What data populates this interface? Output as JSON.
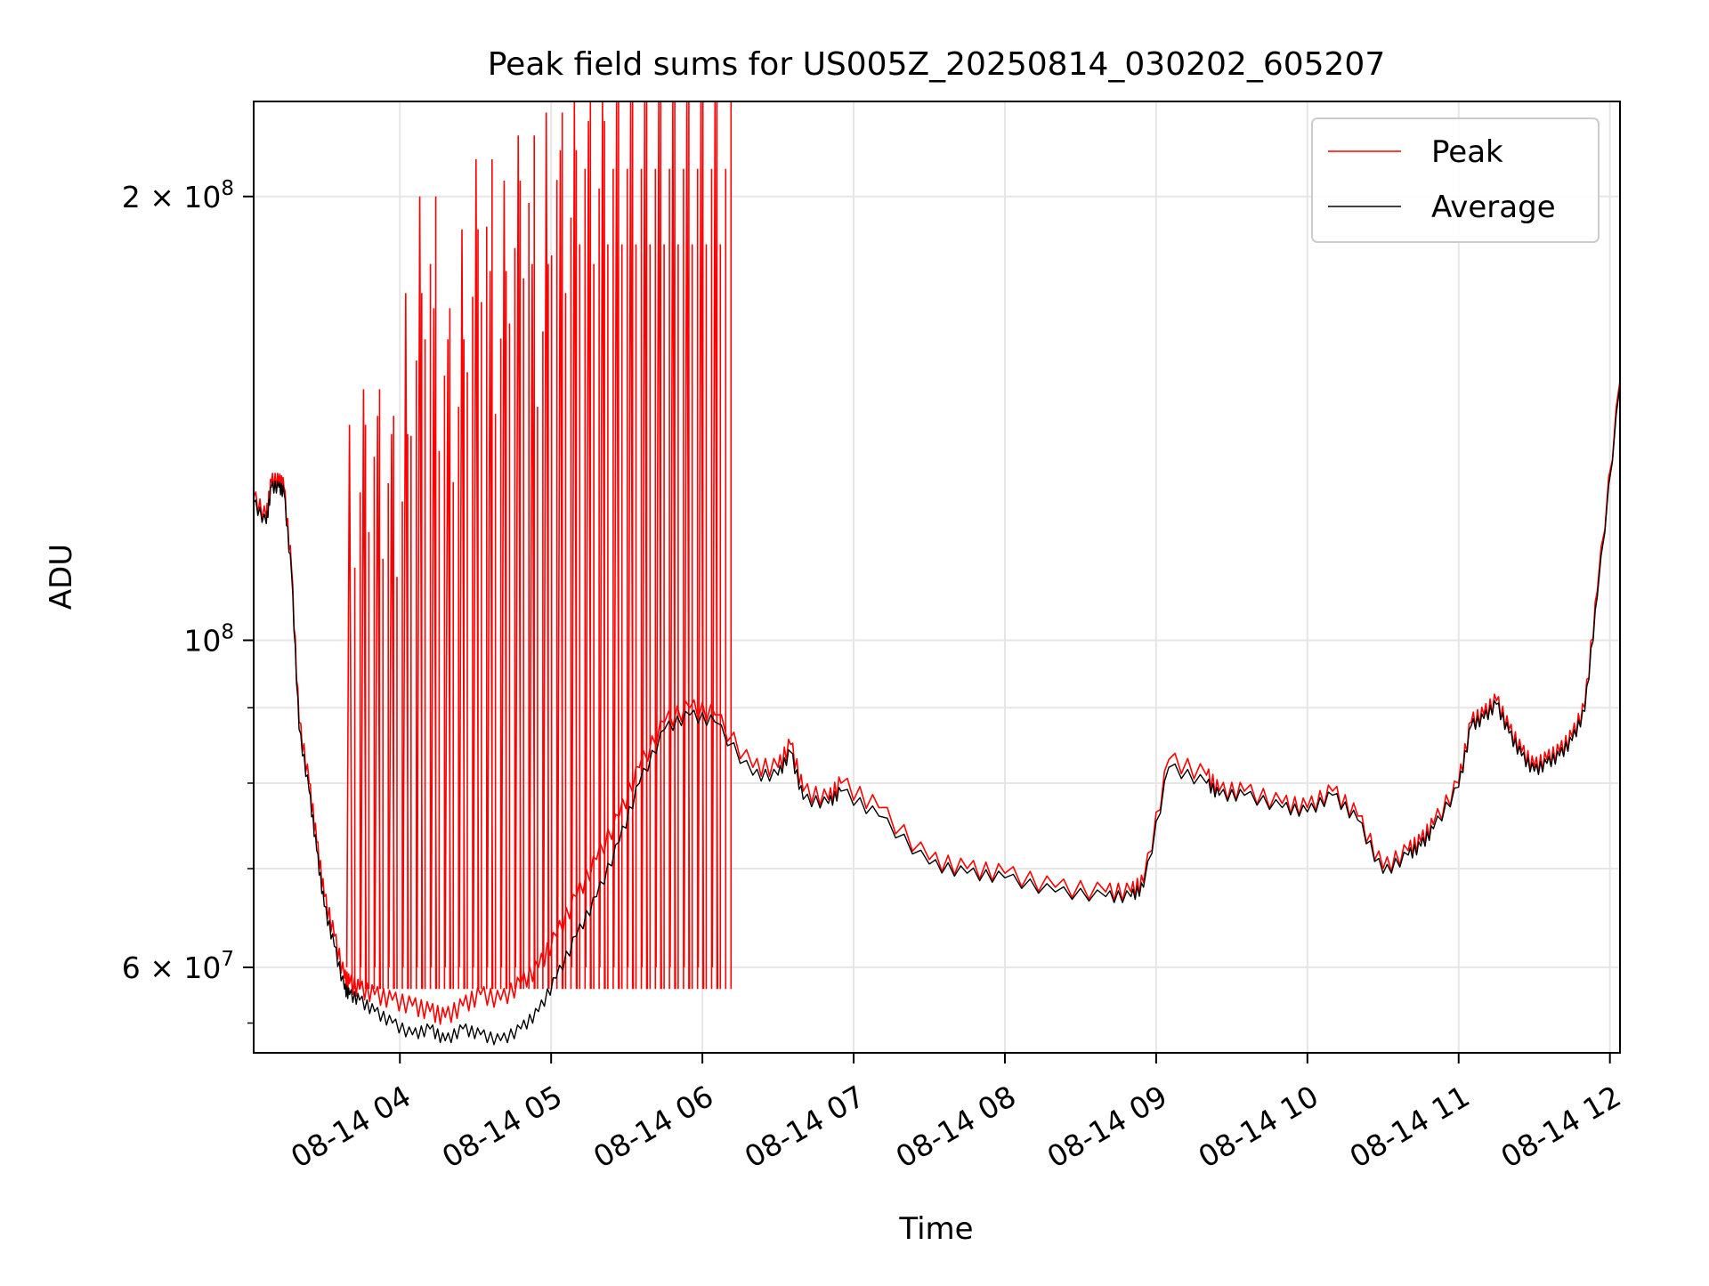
{
  "chart_data": {
    "type": "line",
    "title": "Peak field sums for US005Z_20250814_030202_605207",
    "xlabel": "Time",
    "ylabel": "ADU",
    "y_scale": "log",
    "ylim": [
      52500000,
      232000000
    ],
    "xlim": [
      "2025-08-14 03:02",
      "2025-08-14 12:04"
    ],
    "grid": true,
    "legend_position": "top-right",
    "colors": {
      "peak": "#ff0000",
      "average": "#000000",
      "grid": "#e6e6e6"
    },
    "x_ticks": [
      {
        "value": "2025-08-14 04:00",
        "label": "08-14 04"
      },
      {
        "value": "2025-08-14 05:00",
        "label": "08-14 05"
      },
      {
        "value": "2025-08-14 06:00",
        "label": "08-14 06"
      },
      {
        "value": "2025-08-14 07:00",
        "label": "08-14 07"
      },
      {
        "value": "2025-08-14 08:00",
        "label": "08-14 08"
      },
      {
        "value": "2025-08-14 09:00",
        "label": "08-14 09"
      },
      {
        "value": "2025-08-14 10:00",
        "label": "08-14 10"
      },
      {
        "value": "2025-08-14 11:00",
        "label": "08-14 11"
      },
      {
        "value": "2025-08-14 12:00",
        "label": "08-14 12"
      }
    ],
    "y_ticks_major": [
      {
        "value": 60000000,
        "base": "6 × 10",
        "exp": "7"
      },
      {
        "value": 100000000,
        "base": "10",
        "exp": "8"
      },
      {
        "value": 200000000,
        "base": "2 × 10",
        "exp": "8"
      }
    ],
    "y_ticks_minor": [
      70000000,
      80000000,
      90000000
    ],
    "series": [
      {
        "name": "Peak",
        "color": "#ff0000",
        "x": [
          "2025-08-14 03:02",
          "2025-08-14 03:07",
          "2025-08-14 03:09",
          "2025-08-14 03:12",
          "2025-08-14 03:14",
          "2025-08-14 03:17",
          "2025-08-14 03:20",
          "2025-08-14 03:24",
          "2025-08-14 03:27",
          "2025-08-14 03:30",
          "2025-08-14 03:34",
          "2025-08-14 03:38",
          "2025-08-14 03:40",
          "2025-08-14 03:44",
          "2025-08-14 03:50",
          "2025-08-14 03:57",
          "2025-08-14 04:05",
          "2025-08-14 04:12",
          "2025-08-14 04:18",
          "2025-08-14 04:25",
          "2025-08-14 04:32",
          "2025-08-14 04:40",
          "2025-08-14 04:48",
          "2025-08-14 04:55",
          "2025-08-14 05:02",
          "2025-08-14 05:10",
          "2025-08-14 05:18",
          "2025-08-14 05:27",
          "2025-08-14 05:35",
          "2025-08-14 05:45",
          "2025-08-14 05:55",
          "2025-08-14 06:05",
          "2025-08-14 06:20",
          "2025-08-14 06:30",
          "2025-08-14 06:35",
          "2025-08-14 06:40",
          "2025-08-14 06:50",
          "2025-08-14 06:55",
          "2025-08-14 07:10",
          "2025-08-14 07:30",
          "2025-08-14 07:45",
          "2025-08-14 08:00",
          "2025-08-14 08:20",
          "2025-08-14 08:40",
          "2025-08-14 08:50",
          "2025-08-14 08:55",
          "2025-08-14 09:05",
          "2025-08-14 09:20",
          "2025-08-14 09:25",
          "2025-08-14 09:35",
          "2025-08-14 09:50",
          "2025-08-14 10:00",
          "2025-08-14 10:10",
          "2025-08-14 10:20",
          "2025-08-14 10:30",
          "2025-08-14 10:40",
          "2025-08-14 10:45",
          "2025-08-14 10:50",
          "2025-08-14 11:00",
          "2025-08-14 11:05",
          "2025-08-14 11:10",
          "2025-08-14 11:15",
          "2025-08-14 11:20",
          "2025-08-14 11:25",
          "2025-08-14 11:30",
          "2025-08-14 11:35",
          "2025-08-14 11:40",
          "2025-08-14 11:45",
          "2025-08-14 11:50",
          "2025-08-14 11:55",
          "2025-08-14 12:04"
        ],
        "values": [
          125000000,
          121000000,
          128000000,
          128000000,
          127000000,
          112000000,
          88000000,
          80000000,
          73000000,
          67000000,
          63000000,
          59000000,
          58500000,
          58000000,
          57500000,
          57000000,
          56500000,
          56000000,
          55500000,
          56500000,
          57500000,
          57000000,
          58500000,
          60000000,
          63000000,
          67000000,
          71000000,
          76000000,
          82000000,
          88000000,
          90000000,
          89000000,
          82000000,
          82000000,
          85000000,
          79000000,
          78000000,
          80000000,
          77000000,
          71000000,
          70000000,
          69500000,
          68000000,
          67500000,
          67500000,
          68500000,
          83000000,
          81000000,
          79000000,
          79000000,
          77500000,
          77000000,
          79000000,
          76000000,
          70000000,
          72000000,
          73000000,
          75000000,
          80000000,
          88000000,
          89000000,
          91000000,
          87000000,
          84000000,
          82000000,
          83000000,
          84000000,
          86000000,
          90000000,
          108000000,
          150000000
        ],
        "spike_values": [
          140000000,
          148000000,
          142000000,
          138000000,
          172000000,
          200000000,
          168000000,
          160000000,
          190000000,
          212000000,
          178000000,
          205000000,
          220000000,
          180000000,
          228000000,
          215000000,
          232000000,
          225000000,
          232000000,
          232000000,
          232000000,
          232000000,
          232000000,
          232000000,
          232000000,
          232000000,
          232000000
        ]
      },
      {
        "name": "Average",
        "color": "#000000",
        "x": [
          "2025-08-14 03:02",
          "2025-08-14 03:07",
          "2025-08-14 03:09",
          "2025-08-14 03:12",
          "2025-08-14 03:14",
          "2025-08-14 03:17",
          "2025-08-14 03:20",
          "2025-08-14 03:24",
          "2025-08-14 03:27",
          "2025-08-14 03:30",
          "2025-08-14 03:34",
          "2025-08-14 03:38",
          "2025-08-14 03:40",
          "2025-08-14 03:44",
          "2025-08-14 03:50",
          "2025-08-14 03:57",
          "2025-08-14 04:05",
          "2025-08-14 04:12",
          "2025-08-14 04:18",
          "2025-08-14 04:25",
          "2025-08-14 04:32",
          "2025-08-14 04:40",
          "2025-08-14 04:48",
          "2025-08-14 04:55",
          "2025-08-14 05:02",
          "2025-08-14 05:10",
          "2025-08-14 05:18",
          "2025-08-14 05:27",
          "2025-08-14 05:35",
          "2025-08-14 05:45",
          "2025-08-14 05:55",
          "2025-08-14 06:05",
          "2025-08-14 06:20",
          "2025-08-14 06:30",
          "2025-08-14 06:35",
          "2025-08-14 06:40",
          "2025-08-14 06:50",
          "2025-08-14 06:55",
          "2025-08-14 07:10",
          "2025-08-14 07:30",
          "2025-08-14 07:45",
          "2025-08-14 08:00",
          "2025-08-14 08:20",
          "2025-08-14 08:40",
          "2025-08-14 08:50",
          "2025-08-14 08:55",
          "2025-08-14 09:05",
          "2025-08-14 09:20",
          "2025-08-14 09:25",
          "2025-08-14 09:35",
          "2025-08-14 09:50",
          "2025-08-14 10:00",
          "2025-08-14 10:10",
          "2025-08-14 10:20",
          "2025-08-14 10:30",
          "2025-08-14 10:40",
          "2025-08-14 10:45",
          "2025-08-14 10:50",
          "2025-08-14 11:00",
          "2025-08-14 11:05",
          "2025-08-14 11:10",
          "2025-08-14 11:15",
          "2025-08-14 11:20",
          "2025-08-14 11:25",
          "2025-08-14 11:30",
          "2025-08-14 11:35",
          "2025-08-14 11:40",
          "2025-08-14 11:45",
          "2025-08-14 11:50",
          "2025-08-14 11:55",
          "2025-08-14 12:04"
        ],
        "values": [
          124000000,
          120000000,
          127000000,
          127000000,
          126000000,
          111000000,
          87000000,
          79000000,
          72000000,
          66000000,
          62000000,
          58000000,
          57500000,
          57000000,
          56000000,
          55000000,
          54000000,
          54500000,
          53500000,
          54500000,
          54000000,
          53500000,
          54500000,
          56000000,
          59000000,
          63000000,
          67000000,
          73000000,
          80000000,
          87000000,
          89000000,
          88000000,
          81000000,
          81000000,
          84000000,
          78000000,
          77500000,
          79000000,
          76000000,
          70500000,
          69500000,
          69000000,
          67500000,
          67000000,
          67000000,
          68000000,
          82000000,
          80000000,
          78500000,
          78500000,
          77000000,
          76500000,
          78500000,
          75500000,
          69500000,
          71500000,
          72500000,
          74500000,
          79500000,
          87500000,
          88500000,
          90500000,
          86500000,
          83500000,
          81500000,
          82500000,
          83500000,
          85500000,
          89500000,
          107000000,
          149000000
        ]
      }
    ]
  }
}
